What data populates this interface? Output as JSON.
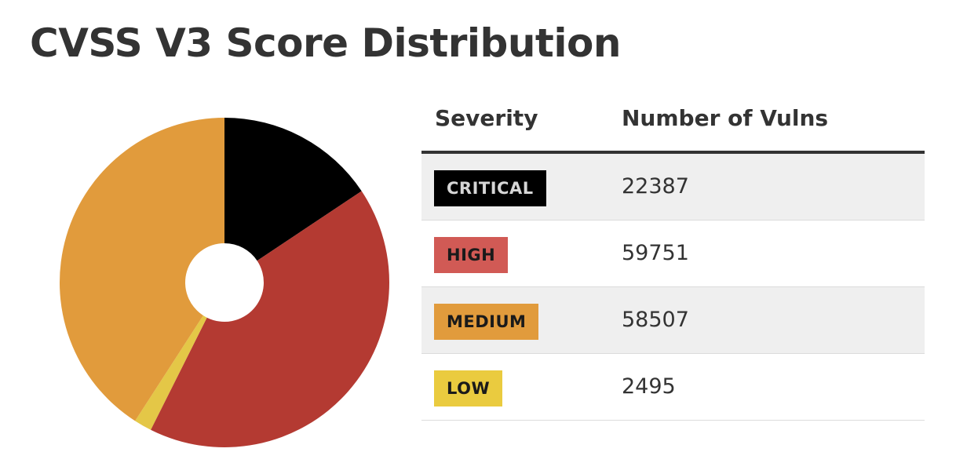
{
  "header": {
    "title": "CVSS V3 Score Distribution"
  },
  "table": {
    "col_severity": "Severity",
    "col_count": "Number of Vulns",
    "rows": [
      {
        "label": "CRITICAL",
        "count": "22387",
        "badge_bg": "#000000",
        "badge_fg": "#d6d6d6"
      },
      {
        "label": "HIGH",
        "count": "59751",
        "badge_bg": "#d15a55",
        "badge_fg": "#1a1a1a"
      },
      {
        "label": "MEDIUM",
        "count": "58507",
        "badge_bg": "#e19b3c",
        "badge_fg": "#1a1a1a"
      },
      {
        "label": "LOW",
        "count": "2495",
        "badge_bg": "#eacb3f",
        "badge_fg": "#1a1a1a"
      }
    ]
  },
  "chart_data": {
    "type": "pie",
    "title": "CVSS V3 Score Distribution",
    "categories": [
      "CRITICAL",
      "HIGH",
      "MEDIUM",
      "LOW"
    ],
    "values": [
      22387,
      59751,
      58507,
      2495
    ],
    "colors": [
      "#000000",
      "#b43a32",
      "#e19b3c",
      "#e4c747"
    ],
    "donut": true,
    "order": [
      "CRITICAL",
      "HIGH",
      "LOW",
      "MEDIUM"
    ],
    "start": "top",
    "direction": "clockwise"
  }
}
